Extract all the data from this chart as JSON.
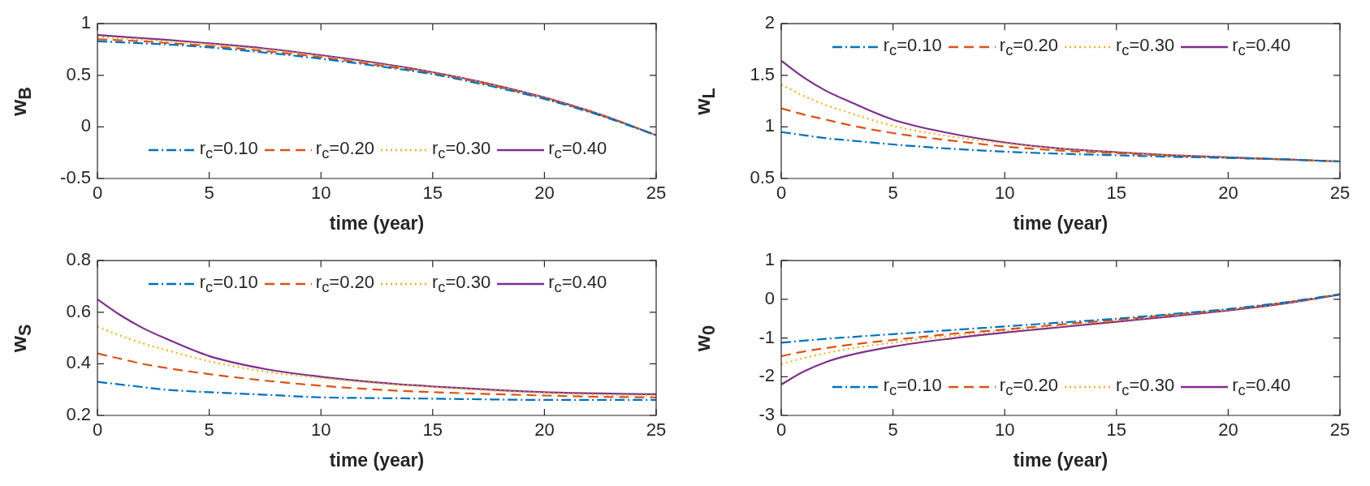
{
  "chart_data": [
    {
      "type": "line",
      "xlabel": "time (year)",
      "ylabel": "w$_{B}$",
      "xlim": [
        0,
        25
      ],
      "xticks": [
        0,
        5,
        10,
        15,
        20,
        25
      ],
      "ylim": [
        -0.5,
        1
      ],
      "yticks": [
        -0.5,
        0,
        0.5,
        1
      ],
      "legend": "bottom",
      "marker": "none",
      "x": [
        0,
        1,
        2,
        3,
        5,
        7.5,
        10,
        12.5,
        15,
        17.5,
        20,
        22.5,
        25
      ],
      "series": [
        {
          "name": "r$_{c}$=0.10",
          "color": "#0072bd",
          "line_style": "dashdot",
          "values": [
            0.83,
            0.82,
            0.81,
            0.8,
            0.77,
            0.72,
            0.66,
            0.59,
            0.51,
            0.4,
            0.27,
            0.11,
            -0.08
          ]
        },
        {
          "name": "r$_{c}$=0.20",
          "color": "#d95319",
          "line_style": "dashed",
          "values": [
            0.85,
            0.84,
            0.83,
            0.815,
            0.785,
            0.735,
            0.675,
            0.6,
            0.52,
            0.41,
            0.275,
            0.115,
            -0.08
          ]
        },
        {
          "name": "r$_{c}$=0.30",
          "color": "#edb120",
          "line_style": "dotted",
          "values": [
            0.87,
            0.86,
            0.845,
            0.83,
            0.8,
            0.75,
            0.685,
            0.61,
            0.525,
            0.415,
            0.28,
            0.12,
            -0.08
          ]
        },
        {
          "name": "r$_{c}$=0.40",
          "color": "#7e2f8e",
          "line_style": "solid",
          "values": [
            0.89,
            0.875,
            0.86,
            0.845,
            0.81,
            0.76,
            0.695,
            0.62,
            0.53,
            0.42,
            0.285,
            0.12,
            -0.08
          ]
        }
      ]
    },
    {
      "type": "line",
      "xlabel": "time (year)",
      "ylabel": "w$_{L}$",
      "xlim": [
        0,
        25
      ],
      "xticks": [
        0,
        5,
        10,
        15,
        20,
        25
      ],
      "ylim": [
        0.5,
        2
      ],
      "yticks": [
        0.5,
        1,
        1.5,
        2
      ],
      "legend": "top",
      "marker": "none",
      "x": [
        0,
        1,
        2,
        3,
        5,
        7.5,
        10,
        12.5,
        15,
        17.5,
        20,
        22.5,
        25
      ],
      "series": [
        {
          "name": "r$_{c}$=0.10",
          "color": "#0072bd",
          "line_style": "dashdot",
          "values": [
            0.95,
            0.92,
            0.89,
            0.87,
            0.83,
            0.79,
            0.76,
            0.74,
            0.725,
            0.71,
            0.7,
            0.685,
            0.665
          ]
        },
        {
          "name": "r$_{c}$=0.20",
          "color": "#d95319",
          "line_style": "dashed",
          "values": [
            1.18,
            1.12,
            1.07,
            1.02,
            0.94,
            0.87,
            0.81,
            0.77,
            0.745,
            0.72,
            0.7,
            0.685,
            0.665
          ]
        },
        {
          "name": "r$_{c}$=0.30",
          "color": "#edb120",
          "line_style": "dotted",
          "values": [
            1.41,
            1.3,
            1.21,
            1.14,
            1.01,
            0.91,
            0.84,
            0.785,
            0.75,
            0.725,
            0.705,
            0.685,
            0.665
          ]
        },
        {
          "name": "r$_{c}$=0.40",
          "color": "#7e2f8e",
          "line_style": "solid",
          "values": [
            1.64,
            1.48,
            1.35,
            1.25,
            1.07,
            0.94,
            0.85,
            0.79,
            0.755,
            0.725,
            0.705,
            0.685,
            0.665
          ]
        }
      ]
    },
    {
      "type": "line",
      "xlabel": "time (year)",
      "ylabel": "w$_{S}$",
      "xlim": [
        0,
        25
      ],
      "xticks": [
        0,
        5,
        10,
        15,
        20,
        25
      ],
      "ylim": [
        0.2,
        0.8
      ],
      "yticks": [
        0.2,
        0.4,
        0.6,
        0.8
      ],
      "legend": "top",
      "marker": "none",
      "x": [
        0,
        1,
        2,
        3,
        5,
        7.5,
        10,
        12.5,
        15,
        17.5,
        20,
        22.5,
        25
      ],
      "series": [
        {
          "name": "r$_{c}$=0.10",
          "color": "#0072bd",
          "line_style": "dashdot",
          "values": [
            0.33,
            0.32,
            0.31,
            0.3,
            0.29,
            0.28,
            0.27,
            0.267,
            0.265,
            0.262,
            0.26,
            0.26,
            0.26
          ]
        },
        {
          "name": "r$_{c}$=0.20",
          "color": "#d95319",
          "line_style": "dashed",
          "values": [
            0.44,
            0.42,
            0.4,
            0.385,
            0.36,
            0.335,
            0.315,
            0.3,
            0.29,
            0.283,
            0.277,
            0.272,
            0.27
          ]
        },
        {
          "name": "r$_{c}$=0.30",
          "color": "#edb120",
          "line_style": "dotted",
          "values": [
            0.545,
            0.51,
            0.48,
            0.455,
            0.41,
            0.37,
            0.345,
            0.325,
            0.31,
            0.297,
            0.287,
            0.28,
            0.278
          ]
        },
        {
          "name": "r$_{c}$=0.40",
          "color": "#7e2f8e",
          "line_style": "solid",
          "values": [
            0.65,
            0.59,
            0.54,
            0.5,
            0.43,
            0.38,
            0.35,
            0.328,
            0.312,
            0.3,
            0.29,
            0.285,
            0.282
          ]
        }
      ]
    },
    {
      "type": "line",
      "xlabel": "time (year)",
      "ylabel": "w$_{0}$",
      "xlim": [
        0,
        25
      ],
      "xticks": [
        0,
        5,
        10,
        15,
        20,
        25
      ],
      "ylim": [
        -3,
        1
      ],
      "yticks": [
        -3,
        -2,
        -1,
        0,
        1
      ],
      "legend": "bottom",
      "marker": "none",
      "x": [
        0,
        1,
        2,
        3,
        5,
        7.5,
        10,
        12.5,
        15,
        17.5,
        20,
        22.5,
        25
      ],
      "series": [
        {
          "name": "r$_{c}$=0.10",
          "color": "#0072bd",
          "line_style": "dashdot",
          "values": [
            -1.12,
            -1.07,
            -1.02,
            -0.98,
            -0.9,
            -0.8,
            -0.7,
            -0.6,
            -0.5,
            -0.38,
            -0.25,
            -0.08,
            0.13
          ]
        },
        {
          "name": "r$_{c}$=0.20",
          "color": "#d95319",
          "line_style": "dashed",
          "values": [
            -1.47,
            -1.35,
            -1.26,
            -1.18,
            -1.05,
            -0.9,
            -0.78,
            -0.65,
            -0.53,
            -0.4,
            -0.26,
            -0.09,
            0.13
          ]
        },
        {
          "name": "r$_{c}$=0.30",
          "color": "#edb120",
          "line_style": "dotted",
          "values": [
            -1.67,
            -1.52,
            -1.39,
            -1.28,
            -1.12,
            -0.95,
            -0.81,
            -0.68,
            -0.55,
            -0.41,
            -0.27,
            -0.1,
            0.13
          ]
        },
        {
          "name": "r$_{c}$=0.40",
          "color": "#7e2f8e",
          "line_style": "solid",
          "values": [
            -2.2,
            -1.87,
            -1.62,
            -1.45,
            -1.22,
            -1.02,
            -0.86,
            -0.72,
            -0.58,
            -0.44,
            -0.29,
            -0.11,
            0.12
          ]
        }
      ]
    }
  ]
}
